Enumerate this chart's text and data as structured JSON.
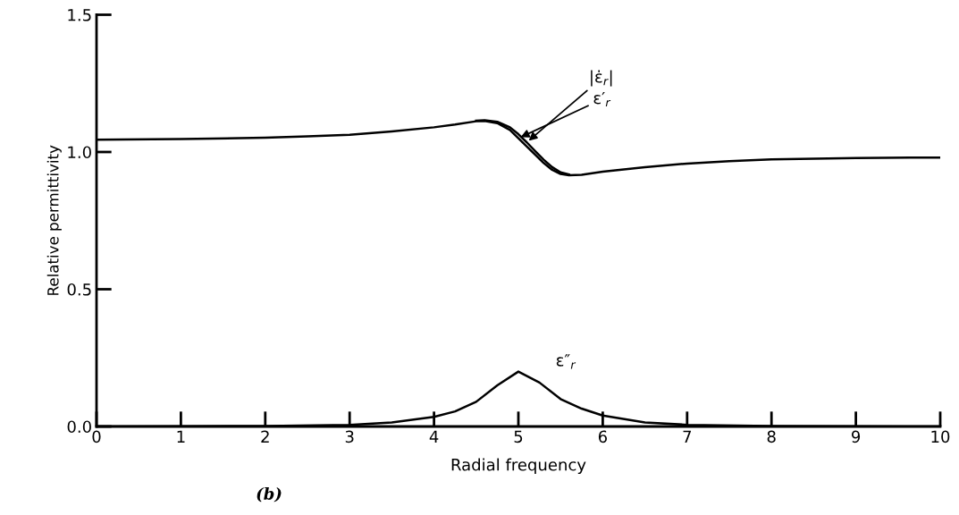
{
  "chart_data": {
    "type": "line",
    "xlabel": "Radial frequency",
    "ylabel": "Relative permittivity",
    "annotations": [
      "(b)"
    ],
    "xlim": [
      0,
      10
    ],
    "ylim": [
      0,
      1.5
    ],
    "xticks": [
      0,
      1,
      2,
      3,
      4,
      5,
      6,
      7,
      8,
      9,
      10
    ],
    "yticks": [
      {
        "value": 0,
        "label": "0.0"
      },
      {
        "value": 0.5,
        "label": "0.5"
      },
      {
        "value": 1,
        "label": "1.0"
      },
      {
        "value": 1.5,
        "label": "1.5"
      }
    ],
    "grid": false,
    "legend": false,
    "marker": "none",
    "line_style": "solid",
    "series": [
      {
        "name": "|ε̇$_{r}$|",
        "color": "#000000",
        "x": [
          4.5,
          4.6,
          4.75,
          4.9,
          5.0,
          5.1,
          5.2,
          5.3,
          5.4,
          5.5,
          5.6
        ],
        "values": [
          1.114,
          1.116,
          1.11,
          1.09,
          1.065,
          1.035,
          1.003,
          0.972,
          0.945,
          0.926,
          0.918
        ]
      },
      {
        "name": "ε′$_{r}$",
        "color": "#000000",
        "x": [
          0,
          1,
          2,
          2.5,
          3,
          3.5,
          4,
          4.25,
          4.5,
          4.6,
          4.75,
          4.9,
          5.0,
          5.1,
          5.2,
          5.3,
          5.4,
          5.5,
          5.6,
          5.75,
          6,
          6.5,
          7,
          7.5,
          8,
          9,
          10
        ],
        "values": [
          1.045,
          1.047,
          1.052,
          1.057,
          1.063,
          1.075,
          1.09,
          1.1,
          1.112,
          1.113,
          1.105,
          1.08,
          1.05,
          1.02,
          0.99,
          0.96,
          0.935,
          0.92,
          0.915,
          0.917,
          0.928,
          0.945,
          0.958,
          0.967,
          0.973,
          0.978,
          0.98
        ]
      },
      {
        "name": "ε″$_{r}$",
        "color": "#000000",
        "x": [
          0,
          1,
          2,
          3,
          3.5,
          4,
          4.25,
          4.5,
          4.75,
          5,
          5.25,
          5.5,
          5.75,
          6,
          6.5,
          7,
          8,
          10
        ],
        "values": [
          0,
          0.001,
          0.002,
          0.006,
          0.015,
          0.035,
          0.055,
          0.09,
          0.15,
          0.2,
          0.16,
          0.1,
          0.065,
          0.04,
          0.015,
          0.006,
          0.002,
          0
        ]
      }
    ]
  }
}
